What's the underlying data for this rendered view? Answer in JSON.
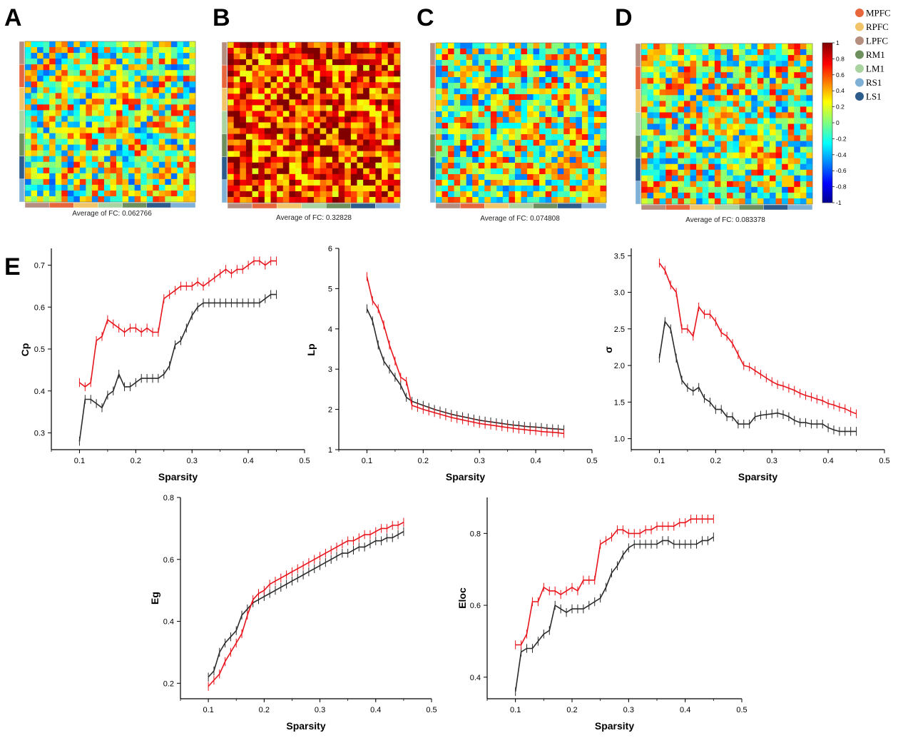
{
  "panels": [
    "A",
    "B",
    "C",
    "D",
    "E"
  ],
  "legend": [
    {
      "label": "MPFC",
      "color": "#e8663c"
    },
    {
      "label": "RPFC",
      "color": "#f2c46a"
    },
    {
      "label": "LPFC",
      "color": "#b58e80"
    },
    {
      "label": "RM1",
      "color": "#6e8f5e"
    },
    {
      "label": "LM1",
      "color": "#a9d3a0"
    },
    {
      "label": "RS1",
      "color": "#7fb0d6"
    },
    {
      "label": "LS1",
      "color": "#2d5c8c"
    }
  ],
  "heatmaps": [
    {
      "panel": "A",
      "caption": "Average of FC: 0.062766",
      "mean": 0.062766,
      "seed": 11,
      "blocks": false
    },
    {
      "panel": "B",
      "caption": "Average of FC: 0.32828",
      "mean": 0.32828,
      "seed": 23,
      "blocks": true
    },
    {
      "panel": "C",
      "caption": "Average of FC: 0.074808",
      "mean": 0.074808,
      "seed": 37,
      "blocks": false
    },
    {
      "panel": "D",
      "caption": "Average of FC: 0.083378",
      "mean": 0.083378,
      "seed": 51,
      "blocks": false
    }
  ],
  "colorbar": {
    "ticks": [
      "1",
      "0.8",
      "0.6",
      "0.4",
      "0.2",
      "0",
      "-0.2",
      "-0.4",
      "-0.6",
      "-0.8",
      "-1"
    ],
    "min": -1,
    "max": 1
  },
  "series_colors": {
    "red": "#e8141c",
    "black": "#2b2b2b"
  },
  "chart_data": [
    {
      "type": "line",
      "ylabel": "Cp",
      "xlabel": "Sparsity",
      "xlim": [
        0.05,
        0.5
      ],
      "ylim": [
        0.26,
        0.74
      ],
      "xticks": [
        "0.1",
        "0.2",
        "0.3",
        "0.4",
        "0.5"
      ],
      "yticks": [
        "0.3",
        "0.4",
        "0.5",
        "0.6",
        "0.7"
      ],
      "x": [
        0.1,
        0.11,
        0.12,
        0.13,
        0.14,
        0.15,
        0.16,
        0.17,
        0.18,
        0.19,
        0.2,
        0.21,
        0.22,
        0.23,
        0.24,
        0.25,
        0.26,
        0.27,
        0.28,
        0.29,
        0.3,
        0.31,
        0.32,
        0.33,
        0.34,
        0.35,
        0.36,
        0.37,
        0.38,
        0.39,
        0.4,
        0.41,
        0.42,
        0.43,
        0.44,
        0.45
      ],
      "series": [
        {
          "name": "red",
          "values": [
            0.42,
            0.41,
            0.42,
            0.52,
            0.53,
            0.57,
            0.56,
            0.55,
            0.54,
            0.55,
            0.55,
            0.54,
            0.55,
            0.54,
            0.54,
            0.62,
            0.63,
            0.64,
            0.65,
            0.65,
            0.65,
            0.66,
            0.65,
            0.66,
            0.67,
            0.68,
            0.69,
            0.68,
            0.69,
            0.69,
            0.7,
            0.71,
            0.71,
            0.7,
            0.71,
            0.71
          ]
        },
        {
          "name": "black",
          "values": [
            0.28,
            0.38,
            0.38,
            0.37,
            0.36,
            0.39,
            0.4,
            0.44,
            0.41,
            0.41,
            0.42,
            0.43,
            0.43,
            0.43,
            0.43,
            0.44,
            0.46,
            0.51,
            0.52,
            0.55,
            0.58,
            0.6,
            0.61,
            0.61,
            0.61,
            0.61,
            0.61,
            0.61,
            0.61,
            0.61,
            0.61,
            0.61,
            0.61,
            0.62,
            0.63,
            0.63
          ]
        }
      ]
    },
    {
      "type": "line",
      "ylabel": "Lp",
      "xlabel": "Sparsity",
      "xlim": [
        0.05,
        0.5
      ],
      "ylim": [
        1,
        6
      ],
      "xticks": [
        "0.1",
        "0.2",
        "0.3",
        "0.4",
        "0.5"
      ],
      "yticks": [
        "1",
        "2",
        "3",
        "4",
        "5",
        "6"
      ],
      "x": [
        0.1,
        0.11,
        0.12,
        0.13,
        0.14,
        0.15,
        0.16,
        0.17,
        0.18,
        0.19,
        0.2,
        0.21,
        0.22,
        0.23,
        0.24,
        0.25,
        0.26,
        0.27,
        0.28,
        0.29,
        0.3,
        0.31,
        0.32,
        0.33,
        0.34,
        0.35,
        0.36,
        0.37,
        0.38,
        0.39,
        0.4,
        0.41,
        0.42,
        0.43,
        0.44,
        0.45
      ],
      "series": [
        {
          "name": "red",
          "values": [
            5.3,
            4.7,
            4.5,
            4.1,
            3.6,
            3.2,
            2.8,
            2.7,
            2.1,
            2.05,
            2.0,
            1.96,
            1.92,
            1.88,
            1.84,
            1.8,
            1.77,
            1.74,
            1.71,
            1.68,
            1.65,
            1.63,
            1.61,
            1.59,
            1.57,
            1.55,
            1.53,
            1.51,
            1.5,
            1.48,
            1.47,
            1.45,
            1.44,
            1.43,
            1.42,
            1.4
          ]
        },
        {
          "name": "black",
          "values": [
            4.5,
            4.2,
            3.6,
            3.2,
            3.0,
            2.8,
            2.6,
            2.3,
            2.2,
            2.15,
            2.1,
            2.05,
            2.0,
            1.96,
            1.92,
            1.88,
            1.85,
            1.82,
            1.79,
            1.76,
            1.73,
            1.71,
            1.69,
            1.67,
            1.65,
            1.63,
            1.61,
            1.6,
            1.58,
            1.57,
            1.56,
            1.55,
            1.53,
            1.52,
            1.51,
            1.5
          ]
        }
      ]
    },
    {
      "type": "line",
      "ylabel": "σ",
      "xlabel": "Sparsity",
      "xlim": [
        0.05,
        0.5
      ],
      "ylim": [
        0.85,
        3.6
      ],
      "xticks": [
        "0.1",
        "0.2",
        "0.3",
        "0.4",
        "0.5"
      ],
      "yticks": [
        "1.0",
        "1.5",
        "2.0",
        "2.5",
        "3.0",
        "3.5"
      ],
      "x": [
        0.1,
        0.11,
        0.12,
        0.13,
        0.14,
        0.15,
        0.16,
        0.17,
        0.18,
        0.19,
        0.2,
        0.21,
        0.22,
        0.23,
        0.24,
        0.25,
        0.26,
        0.27,
        0.28,
        0.29,
        0.3,
        0.31,
        0.32,
        0.33,
        0.34,
        0.35,
        0.36,
        0.37,
        0.38,
        0.39,
        0.4,
        0.41,
        0.42,
        0.43,
        0.44,
        0.45
      ],
      "series": [
        {
          "name": "red",
          "values": [
            3.4,
            3.3,
            3.1,
            3.0,
            2.5,
            2.5,
            2.4,
            2.8,
            2.7,
            2.7,
            2.6,
            2.45,
            2.4,
            2.3,
            2.15,
            2.0,
            1.98,
            1.93,
            1.88,
            1.83,
            1.78,
            1.74,
            1.72,
            1.69,
            1.66,
            1.62,
            1.59,
            1.57,
            1.54,
            1.52,
            1.48,
            1.46,
            1.43,
            1.41,
            1.37,
            1.34
          ]
        },
        {
          "name": "black",
          "values": [
            2.1,
            2.6,
            2.5,
            2.1,
            1.8,
            1.7,
            1.65,
            1.7,
            1.55,
            1.5,
            1.4,
            1.4,
            1.3,
            1.3,
            1.2,
            1.2,
            1.2,
            1.3,
            1.32,
            1.33,
            1.34,
            1.35,
            1.33,
            1.3,
            1.25,
            1.22,
            1.22,
            1.2,
            1.2,
            1.2,
            1.15,
            1.12,
            1.1,
            1.1,
            1.1,
            1.1
          ]
        }
      ]
    },
    {
      "type": "line",
      "ylabel": "Eg",
      "xlabel": "Sparsity",
      "xlim": [
        0.05,
        0.5
      ],
      "ylim": [
        0.15,
        0.8
      ],
      "xticks": [
        "0.1",
        "0.2",
        "0.3",
        "0.4",
        "0.5"
      ],
      "yticks": [
        "0.2",
        "0.4",
        "0.6",
        "0.8"
      ],
      "x": [
        0.1,
        0.11,
        0.12,
        0.13,
        0.14,
        0.15,
        0.16,
        0.17,
        0.18,
        0.19,
        0.2,
        0.21,
        0.22,
        0.23,
        0.24,
        0.25,
        0.26,
        0.27,
        0.28,
        0.29,
        0.3,
        0.31,
        0.32,
        0.33,
        0.34,
        0.35,
        0.36,
        0.37,
        0.38,
        0.39,
        0.4,
        0.41,
        0.42,
        0.43,
        0.44,
        0.45
      ],
      "series": [
        {
          "name": "red",
          "values": [
            0.19,
            0.21,
            0.23,
            0.27,
            0.3,
            0.33,
            0.36,
            0.42,
            0.47,
            0.49,
            0.5,
            0.52,
            0.53,
            0.54,
            0.55,
            0.56,
            0.57,
            0.58,
            0.59,
            0.6,
            0.61,
            0.62,
            0.63,
            0.64,
            0.65,
            0.66,
            0.66,
            0.67,
            0.68,
            0.68,
            0.69,
            0.7,
            0.7,
            0.71,
            0.71,
            0.72
          ]
        },
        {
          "name": "black",
          "values": [
            0.22,
            0.24,
            0.3,
            0.33,
            0.35,
            0.37,
            0.42,
            0.44,
            0.46,
            0.47,
            0.48,
            0.49,
            0.5,
            0.51,
            0.52,
            0.53,
            0.54,
            0.55,
            0.56,
            0.57,
            0.58,
            0.59,
            0.6,
            0.61,
            0.62,
            0.62,
            0.63,
            0.64,
            0.64,
            0.65,
            0.66,
            0.66,
            0.67,
            0.67,
            0.68,
            0.69
          ]
        }
      ]
    },
    {
      "type": "line",
      "ylabel": "Eloc",
      "xlabel": "Sparsity",
      "xlim": [
        0.05,
        0.5
      ],
      "ylim": [
        0.34,
        0.9
      ],
      "xticks": [
        "0.1",
        "0.2",
        "0.3",
        "0.4",
        "0.5"
      ],
      "yticks": [
        "0.4",
        "0.6",
        "0.8"
      ],
      "x": [
        0.1,
        0.11,
        0.12,
        0.13,
        0.14,
        0.15,
        0.16,
        0.17,
        0.18,
        0.19,
        0.2,
        0.21,
        0.22,
        0.23,
        0.24,
        0.25,
        0.26,
        0.27,
        0.28,
        0.29,
        0.3,
        0.31,
        0.32,
        0.33,
        0.34,
        0.35,
        0.36,
        0.37,
        0.38,
        0.39,
        0.4,
        0.41,
        0.42,
        0.43,
        0.44,
        0.45
      ],
      "series": [
        {
          "name": "red",
          "values": [
            0.49,
            0.49,
            0.52,
            0.61,
            0.61,
            0.65,
            0.64,
            0.64,
            0.63,
            0.64,
            0.65,
            0.64,
            0.67,
            0.67,
            0.67,
            0.77,
            0.78,
            0.79,
            0.81,
            0.81,
            0.8,
            0.8,
            0.8,
            0.81,
            0.81,
            0.82,
            0.82,
            0.82,
            0.82,
            0.83,
            0.83,
            0.84,
            0.84,
            0.84,
            0.84,
            0.84
          ]
        },
        {
          "name": "black",
          "values": [
            0.36,
            0.47,
            0.48,
            0.48,
            0.5,
            0.52,
            0.53,
            0.6,
            0.59,
            0.58,
            0.59,
            0.59,
            0.59,
            0.6,
            0.61,
            0.62,
            0.65,
            0.69,
            0.71,
            0.74,
            0.76,
            0.77,
            0.77,
            0.77,
            0.77,
            0.77,
            0.78,
            0.78,
            0.77,
            0.77,
            0.77,
            0.77,
            0.77,
            0.78,
            0.78,
            0.79
          ]
        }
      ]
    }
  ]
}
